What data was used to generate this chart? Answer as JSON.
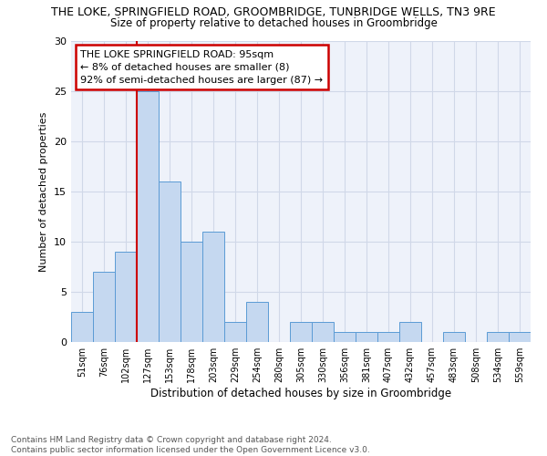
{
  "title": "THE LOKE, SPRINGFIELD ROAD, GROOMBRIDGE, TUNBRIDGE WELLS, TN3 9RE",
  "subtitle": "Size of property relative to detached houses in Groombridge",
  "xlabel": "Distribution of detached houses by size in Groombridge",
  "ylabel": "Number of detached properties",
  "categories": [
    "51sqm",
    "76sqm",
    "102sqm",
    "127sqm",
    "153sqm",
    "178sqm",
    "203sqm",
    "229sqm",
    "254sqm",
    "280sqm",
    "305sqm",
    "330sqm",
    "356sqm",
    "381sqm",
    "407sqm",
    "432sqm",
    "457sqm",
    "483sqm",
    "508sqm",
    "534sqm",
    "559sqm"
  ],
  "values": [
    3,
    7,
    9,
    25,
    16,
    10,
    11,
    2,
    4,
    0,
    2,
    2,
    1,
    1,
    1,
    2,
    0,
    1,
    0,
    1,
    1
  ],
  "bar_color": "#C5D8F0",
  "bar_edge_color": "#5B9BD5",
  "grid_color": "#D0D8E8",
  "annotation_box_color": "#FFFFFF",
  "annotation_border_color": "#CC0000",
  "vline_color": "#CC0000",
  "vline_x_index": 2,
  "annotation_title": "THE LOKE SPRINGFIELD ROAD: 95sqm",
  "annotation_line1": "← 8% of detached houses are smaller (8)",
  "annotation_line2": "92% of semi-detached houses are larger (87) →",
  "ylim": [
    0,
    30
  ],
  "yticks": [
    0,
    5,
    10,
    15,
    20,
    25,
    30
  ],
  "footer1": "Contains HM Land Registry data © Crown copyright and database right 2024.",
  "footer2": "Contains public sector information licensed under the Open Government Licence v3.0.",
  "bg_color": "#FFFFFF",
  "plot_bg_color": "#EEF2FA"
}
